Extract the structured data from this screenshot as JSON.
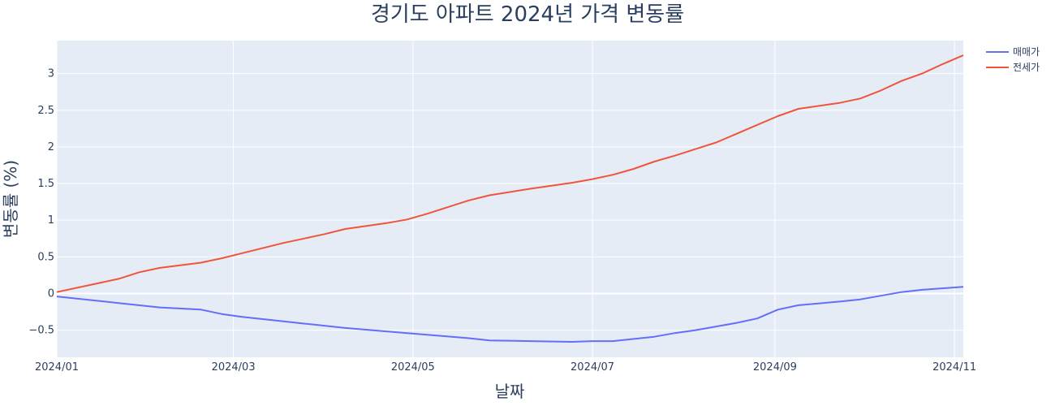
{
  "chart_data": {
    "type": "line",
    "title": "경기도 아파트 2024년 가격 변동률",
    "xlabel": "날짜",
    "ylabel": "변동률 (%)",
    "x_ticks": [
      "2024/01",
      "2024/03",
      "2024/05",
      "2024/07",
      "2024/09",
      "2024/11"
    ],
    "x_tick_dates": [
      "2024-01-01",
      "2024-03-01",
      "2024-05-01",
      "2024-07-01",
      "2024-09-01",
      "2024-11-01"
    ],
    "xlim": [
      "2024-01-01",
      "2024-11-04"
    ],
    "y_ticks": [
      "−0.5",
      "0",
      "0.5",
      "1",
      "1.5",
      "2",
      "2.5",
      "3"
    ],
    "y_tick_values": [
      -0.5,
      0,
      0.5,
      1,
      1.5,
      2,
      2.5,
      3
    ],
    "ylim": [
      -0.87,
      3.45
    ],
    "grid": true,
    "legend_position": "top-right",
    "series": [
      {
        "name": "매매가",
        "color": "#636efa",
        "points": [
          [
            "2024-01-01",
            -0.04
          ],
          [
            "2024-01-22",
            -0.13
          ],
          [
            "2024-02-05",
            -0.19
          ],
          [
            "2024-02-19",
            -0.22
          ],
          [
            "2024-02-26",
            -0.28
          ],
          [
            "2024-03-04",
            -0.32
          ],
          [
            "2024-03-25",
            -0.41
          ],
          [
            "2024-04-08",
            -0.47
          ],
          [
            "2024-04-29",
            -0.54
          ],
          [
            "2024-05-20",
            -0.61
          ],
          [
            "2024-05-27",
            -0.64
          ],
          [
            "2024-06-10",
            -0.65
          ],
          [
            "2024-06-24",
            -0.66
          ],
          [
            "2024-07-01",
            -0.65
          ],
          [
            "2024-07-08",
            -0.65
          ],
          [
            "2024-07-22",
            -0.59
          ],
          [
            "2024-07-29",
            -0.54
          ],
          [
            "2024-08-05",
            -0.5
          ],
          [
            "2024-08-12",
            -0.45
          ],
          [
            "2024-08-19",
            -0.4
          ],
          [
            "2024-08-26",
            -0.34
          ],
          [
            "2024-09-02",
            -0.22
          ],
          [
            "2024-09-09",
            -0.16
          ],
          [
            "2024-09-23",
            -0.11
          ],
          [
            "2024-09-30",
            -0.08
          ],
          [
            "2024-10-07",
            -0.03
          ],
          [
            "2024-10-14",
            0.02
          ],
          [
            "2024-10-21",
            0.05
          ],
          [
            "2024-11-04",
            0.09
          ]
        ]
      },
      {
        "name": "전세가",
        "color": "#ef553b",
        "points": [
          [
            "2024-01-01",
            0.02
          ],
          [
            "2024-01-22",
            0.2
          ],
          [
            "2024-01-29",
            0.29
          ],
          [
            "2024-02-05",
            0.35
          ],
          [
            "2024-02-19",
            0.42
          ],
          [
            "2024-02-26",
            0.48
          ],
          [
            "2024-03-04",
            0.55
          ],
          [
            "2024-03-18",
            0.69
          ],
          [
            "2024-03-25",
            0.75
          ],
          [
            "2024-04-01",
            0.81
          ],
          [
            "2024-04-08",
            0.88
          ],
          [
            "2024-04-22",
            0.96
          ],
          [
            "2024-04-29",
            1.01
          ],
          [
            "2024-05-06",
            1.09
          ],
          [
            "2024-05-13",
            1.18
          ],
          [
            "2024-05-20",
            1.27
          ],
          [
            "2024-05-27",
            1.34
          ],
          [
            "2024-06-10",
            1.43
          ],
          [
            "2024-06-24",
            1.51
          ],
          [
            "2024-07-01",
            1.56
          ],
          [
            "2024-07-08",
            1.62
          ],
          [
            "2024-07-15",
            1.7
          ],
          [
            "2024-07-22",
            1.8
          ],
          [
            "2024-07-29",
            1.88
          ],
          [
            "2024-08-05",
            1.97
          ],
          [
            "2024-08-12",
            2.06
          ],
          [
            "2024-08-19",
            2.18
          ],
          [
            "2024-08-26",
            2.3
          ],
          [
            "2024-09-02",
            2.42
          ],
          [
            "2024-09-09",
            2.52
          ],
          [
            "2024-09-23",
            2.6
          ],
          [
            "2024-09-30",
            2.66
          ],
          [
            "2024-10-07",
            2.77
          ],
          [
            "2024-10-14",
            2.9
          ],
          [
            "2024-10-21",
            3.0
          ],
          [
            "2024-10-28",
            3.13
          ],
          [
            "2024-11-04",
            3.25
          ]
        ]
      }
    ]
  }
}
